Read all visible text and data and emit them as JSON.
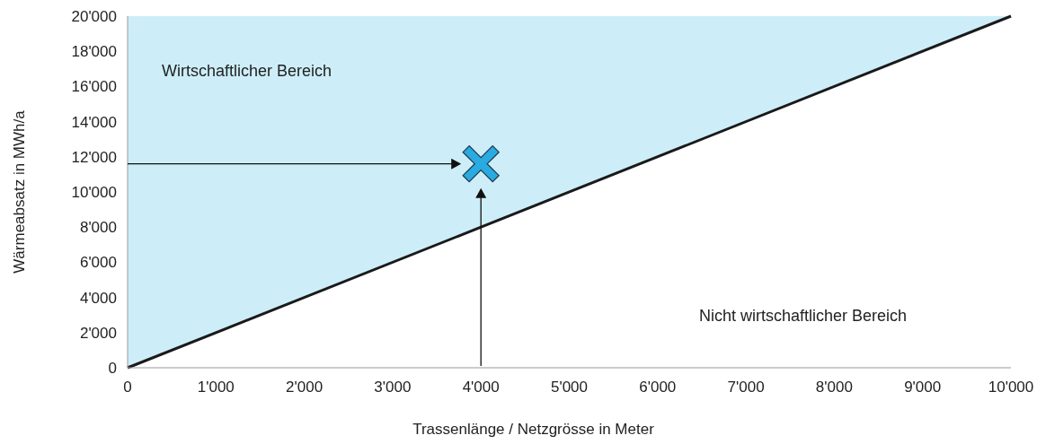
{
  "chart_data": {
    "type": "line",
    "xlabel": "Trassenlänge / Netzgrösse in Meter",
    "ylabel": "Wärmeabsatz in MWh/a",
    "xlim": [
      0,
      10000
    ],
    "ylim": [
      0,
      20000
    ],
    "xticks": [
      0,
      {
        "value": 1000,
        "label": "1'000"
      },
      {
        "value": 2000,
        "label": "2'000"
      },
      {
        "value": 3000,
        "label": "3'000"
      },
      {
        "value": 4000,
        "label": "4'000"
      },
      {
        "value": 5000,
        "label": "5'000"
      },
      {
        "value": 6000,
        "label": "6'000"
      },
      {
        "value": 7000,
        "label": "7'000"
      },
      {
        "value": 8000,
        "label": "8'000"
      },
      {
        "value": 9000,
        "label": "9'000"
      },
      {
        "value": 10000,
        "label": "10'000"
      }
    ],
    "yticks": [
      0,
      {
        "value": 2000,
        "label": "2'000"
      },
      {
        "value": 4000,
        "label": "4'000"
      },
      {
        "value": 6000,
        "label": "6'000"
      },
      {
        "value": 8000,
        "label": "8'000"
      },
      {
        "value": 10000,
        "label": "10'000"
      },
      {
        "value": 12000,
        "label": "12'000"
      },
      {
        "value": 14000,
        "label": "14'000"
      },
      {
        "value": 16000,
        "label": "16'000"
      },
      {
        "value": 18000,
        "label": "18'000"
      },
      {
        "value": 20000,
        "label": "20'000"
      }
    ],
    "grid": false,
    "series": [
      {
        "color": "#1a1a1a",
        "x": [
          0,
          10000
        ],
        "values": [
          0,
          20000
        ],
        "lower": [
          0,
          20000
        ],
        "upper": [
          20000,
          20000
        ]
      },
      {
        "type": "scatter",
        "color": "#29aae1",
        "marker": "cross",
        "x": [
          4000
        ],
        "values": [
          11600
        ]
      }
    ],
    "annotations": [
      "Wirtschaftlicher Bereich",
      "Nicht wirtschaftlicher Bereich"
    ]
  }
}
